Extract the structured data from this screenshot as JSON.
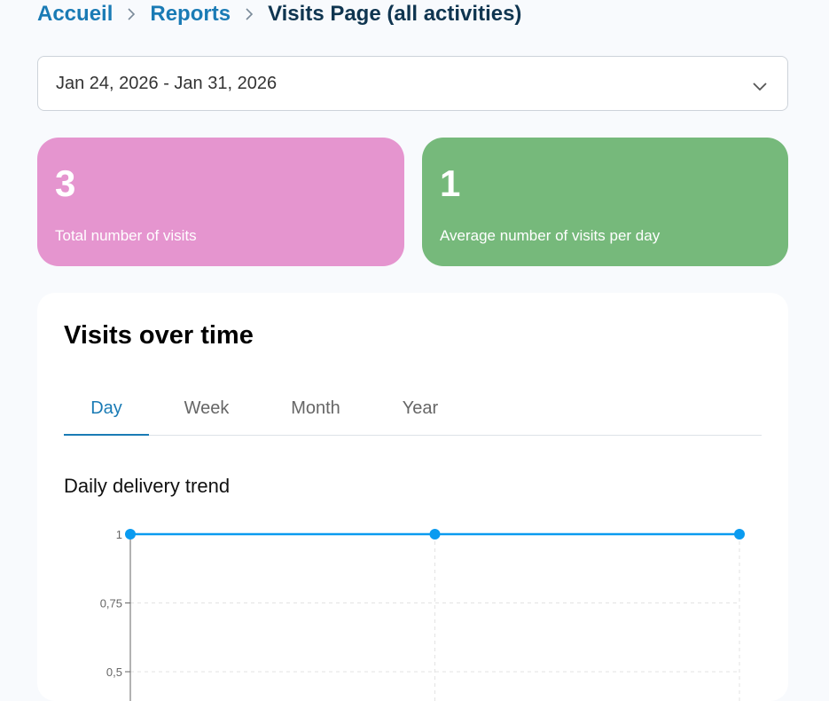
{
  "breadcrumb": {
    "home": "Accueil",
    "reports": "Reports",
    "current": "Visits Page (all activities)"
  },
  "date_range": {
    "value": "Jan 24, 2026 - Jan 31, 2026"
  },
  "stats": {
    "total_visits": {
      "value": "3",
      "label": "Total number of visits",
      "color": "#e595cf"
    },
    "avg_visits": {
      "value": "1",
      "label": "Average number of visits per day",
      "color": "#76b97b"
    }
  },
  "panel": {
    "title": "Visits over time",
    "tabs": [
      {
        "label": "Day",
        "active": true
      },
      {
        "label": "Week",
        "active": false
      },
      {
        "label": "Month",
        "active": false
      },
      {
        "label": "Year",
        "active": false
      }
    ],
    "chart_title": "Daily delivery trend"
  },
  "chart_data": {
    "type": "line",
    "title": "Daily delivery trend",
    "x": [
      0,
      1,
      2
    ],
    "series": [
      {
        "values": [
          1,
          1,
          1
        ],
        "color": "#0a9bf0"
      }
    ],
    "yticks": [
      "1",
      "0,75",
      "0,5"
    ],
    "ytick_values": [
      1,
      0.75,
      0.5
    ],
    "grid": true
  }
}
